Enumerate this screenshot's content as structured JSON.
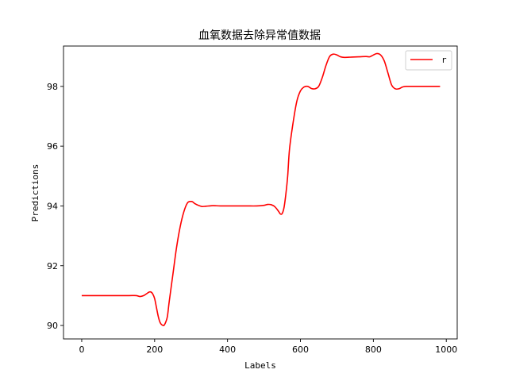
{
  "chart_data": {
    "type": "line",
    "title": "血氧数据去除异常值数据",
    "xlabel": "Labels",
    "ylabel": "Predictions",
    "xlim": [
      -50,
      1030
    ],
    "ylim": [
      89.55,
      99.35
    ],
    "xticks": [
      0,
      200,
      400,
      600,
      800,
      1000
    ],
    "yticks": [
      90,
      92,
      94,
      96,
      98
    ],
    "grid": false,
    "legend_position": "top-right",
    "series": [
      {
        "name": "r",
        "color": "#ff0000",
        "x": [
          0,
          50,
          100,
          130,
          150,
          160,
          170,
          180,
          185,
          190,
          195,
          200,
          205,
          210,
          215,
          220,
          225,
          230,
          235,
          240,
          250,
          260,
          270,
          280,
          290,
          300,
          305,
          310,
          320,
          330,
          340,
          350,
          360,
          380,
          400,
          450,
          480,
          500,
          510,
          520,
          530,
          540,
          545,
          550,
          555,
          560,
          565,
          570,
          580,
          590,
          600,
          610,
          620,
          630,
          640,
          650,
          660,
          670,
          680,
          690,
          700,
          710,
          720,
          740,
          760,
          780,
          790,
          800,
          810,
          820,
          830,
          840,
          850,
          860,
          870,
          880,
          890,
          900,
          950,
          983
        ],
        "y": [
          91.0,
          91.0,
          91.0,
          91.0,
          91.0,
          90.97,
          91.0,
          91.08,
          91.12,
          91.12,
          91.05,
          90.9,
          90.6,
          90.3,
          90.1,
          90.02,
          90.0,
          90.1,
          90.3,
          90.8,
          91.7,
          92.6,
          93.3,
          93.8,
          94.1,
          94.15,
          94.13,
          94.08,
          94.02,
          93.98,
          93.99,
          94.0,
          94.01,
          94.0,
          94.0,
          94.0,
          94.0,
          94.02,
          94.05,
          94.04,
          93.97,
          93.82,
          93.73,
          93.75,
          93.95,
          94.4,
          95.0,
          95.9,
          96.8,
          97.5,
          97.85,
          97.98,
          98.0,
          97.93,
          97.92,
          98.0,
          98.3,
          98.7,
          99.0,
          99.08,
          99.05,
          98.99,
          98.97,
          98.98,
          98.99,
          99.0,
          98.99,
          99.05,
          99.1,
          99.05,
          98.85,
          98.45,
          98.05,
          97.92,
          97.92,
          97.98,
          98.0,
          98.0,
          98.0,
          98.0
        ]
      }
    ]
  }
}
